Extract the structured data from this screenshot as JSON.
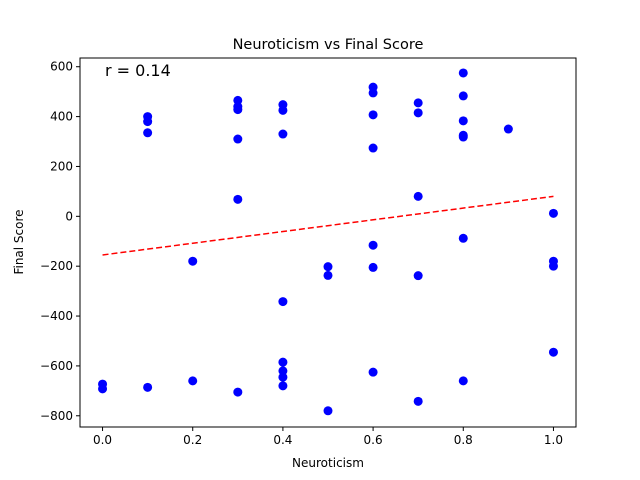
{
  "chart_data": {
    "type": "scatter",
    "title": "Neuroticism vs Final Score",
    "xlabel": "Neuroticism",
    "ylabel": "Final Score",
    "xlim": [
      -0.05,
      1.05
    ],
    "ylim": [
      -845,
      635
    ],
    "xticks": [
      0.0,
      0.2,
      0.4,
      0.6,
      0.8,
      1.0
    ],
    "xtick_labels": [
      "0.0",
      "0.2",
      "0.4",
      "0.6",
      "0.8",
      "1.0"
    ],
    "yticks": [
      -800,
      -600,
      -400,
      -200,
      0,
      200,
      400,
      600
    ],
    "ytick_labels": [
      "−800",
      "−600",
      "−400",
      "−200",
      "0",
      "200",
      "400",
      "600"
    ],
    "annotation": "r = 0.14",
    "grid": false,
    "point_color": "#0000ff",
    "trend_color": "#ff0000",
    "trend_line": {
      "x": [
        0.0,
        1.0
      ],
      "y": [
        -155,
        80
      ]
    },
    "points": [
      {
        "x": 0.0,
        "y": -673
      },
      {
        "x": 0.0,
        "y": -692
      },
      {
        "x": 0.1,
        "y": 400
      },
      {
        "x": 0.1,
        "y": 380
      },
      {
        "x": 0.1,
        "y": 335
      },
      {
        "x": 0.1,
        "y": -686
      },
      {
        "x": 0.2,
        "y": -180
      },
      {
        "x": 0.2,
        "y": -660
      },
      {
        "x": 0.3,
        "y": 465
      },
      {
        "x": 0.3,
        "y": 440
      },
      {
        "x": 0.3,
        "y": 428
      },
      {
        "x": 0.3,
        "y": 310
      },
      {
        "x": 0.3,
        "y": 68
      },
      {
        "x": 0.3,
        "y": -705
      },
      {
        "x": 0.4,
        "y": 448
      },
      {
        "x": 0.4,
        "y": 425
      },
      {
        "x": 0.4,
        "y": 330
      },
      {
        "x": 0.4,
        "y": -342
      },
      {
        "x": 0.4,
        "y": -585
      },
      {
        "x": 0.4,
        "y": -620
      },
      {
        "x": 0.4,
        "y": -645
      },
      {
        "x": 0.4,
        "y": -680
      },
      {
        "x": 0.5,
        "y": -202
      },
      {
        "x": 0.5,
        "y": -237
      },
      {
        "x": 0.5,
        "y": -780
      },
      {
        "x": 0.6,
        "y": 518
      },
      {
        "x": 0.6,
        "y": 495
      },
      {
        "x": 0.6,
        "y": 407
      },
      {
        "x": 0.6,
        "y": 274
      },
      {
        "x": 0.6,
        "y": -116
      },
      {
        "x": 0.6,
        "y": -205
      },
      {
        "x": 0.6,
        "y": -625
      },
      {
        "x": 0.7,
        "y": 455
      },
      {
        "x": 0.7,
        "y": 415
      },
      {
        "x": 0.7,
        "y": 80
      },
      {
        "x": 0.7,
        "y": -238
      },
      {
        "x": 0.7,
        "y": -742
      },
      {
        "x": 0.8,
        "y": 575
      },
      {
        "x": 0.8,
        "y": 483
      },
      {
        "x": 0.8,
        "y": 383
      },
      {
        "x": 0.8,
        "y": 325
      },
      {
        "x": 0.8,
        "y": 318
      },
      {
        "x": 0.8,
        "y": -88
      },
      {
        "x": 0.8,
        "y": -660
      },
      {
        "x": 0.9,
        "y": 350
      },
      {
        "x": 1.0,
        "y": 12
      },
      {
        "x": 1.0,
        "y": -180
      },
      {
        "x": 1.0,
        "y": -200
      },
      {
        "x": 1.0,
        "y": -545
      }
    ]
  }
}
